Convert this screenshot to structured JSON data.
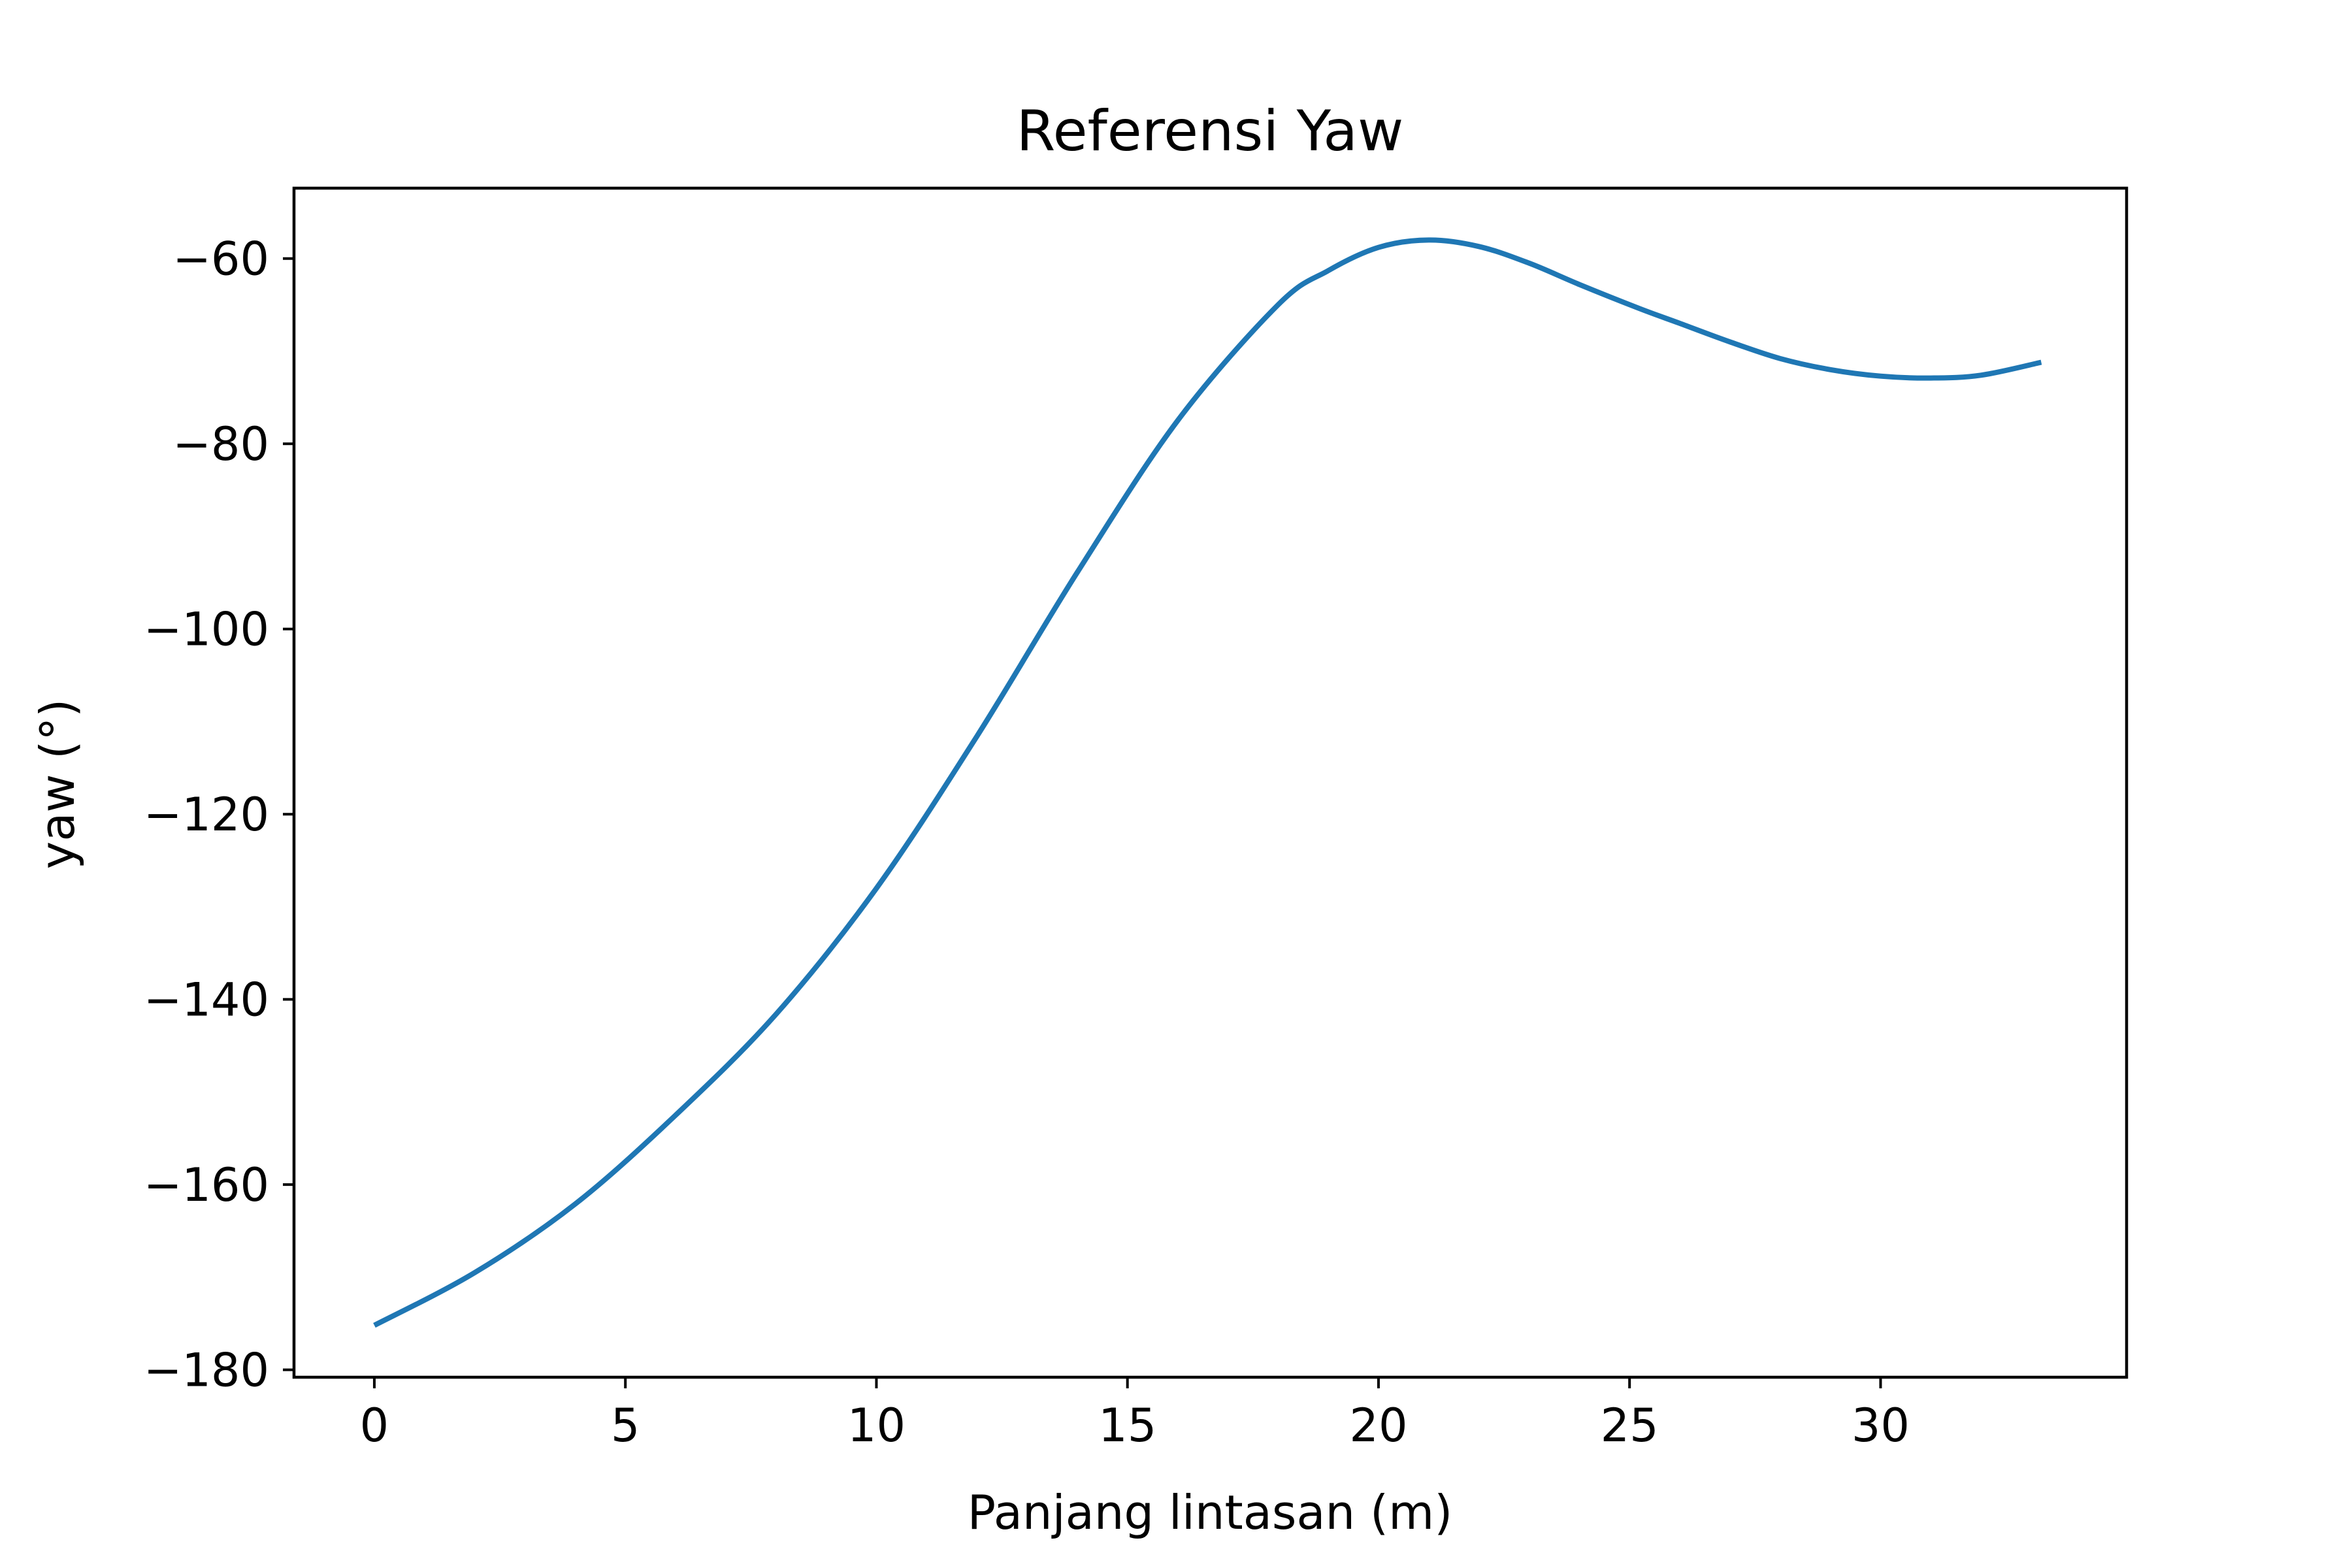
{
  "chart_data": {
    "type": "line",
    "title": "Referensi Yaw",
    "xlabel": "Panjang lintasan (m)",
    "ylabel": "yaw (°)",
    "xlim": [
      -1.6,
      34.9
    ],
    "ylim": [
      -180.8,
      -52.4
    ],
    "xticks": [
      0,
      5,
      10,
      15,
      20,
      25,
      30
    ],
    "xtick_labels": [
      "0",
      "5",
      "10",
      "15",
      "20",
      "25",
      "30"
    ],
    "yticks": [
      -60,
      -80,
      -100,
      -120,
      -140,
      -160,
      -180
    ],
    "ytick_labels": [
      "−60",
      "−80",
      "−100",
      "−120",
      "−140",
      "−160",
      "−180"
    ],
    "grid": false,
    "legend": "none",
    "series": [
      {
        "color": "#1f77b4",
        "x": [
          0,
          2,
          4,
          6,
          8,
          10,
          12,
          14,
          16,
          18,
          19,
          20,
          21,
          22,
          23,
          24,
          25.2,
          26,
          27,
          28,
          29,
          30,
          31,
          32,
          33.2
        ],
        "y": [
          -175.2,
          -169.5,
          -162.1,
          -152.5,
          -141.6,
          -128.0,
          -111.6,
          -93.9,
          -77.5,
          -65.0,
          -61.3,
          -58.8,
          -58.0,
          -58.7,
          -60.5,
          -62.8,
          -65.4,
          -67.0,
          -69.0,
          -70.8,
          -72.0,
          -72.7,
          -72.9,
          -72.6,
          -71.2
        ]
      }
    ]
  }
}
